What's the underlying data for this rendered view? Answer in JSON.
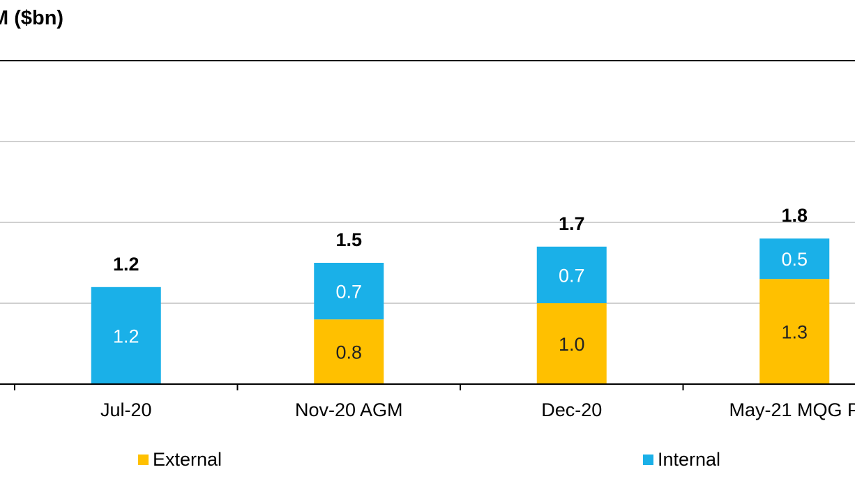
{
  "chart_data": {
    "type": "bar",
    "stacked": true,
    "title": "M ($bn)",
    "categories": [
      "Jul-20",
      "Nov-20 AGM",
      "Dec-20",
      "May-21 MQG P"
    ],
    "series": [
      {
        "name": "External",
        "values": [
          0,
          0.8,
          1.0,
          1.3
        ],
        "labels": [
          "",
          "0.8",
          "1.0",
          "1.3"
        ]
      },
      {
        "name": "Internal",
        "values": [
          1.2,
          0.7,
          0.7,
          0.5
        ],
        "labels": [
          "1.2",
          "0.7",
          "0.7",
          "0.5"
        ]
      }
    ],
    "totals": [
      1.2,
      1.5,
      1.7,
      1.8
    ],
    "total_labels": [
      "1.2",
      "1.5",
      "1.7",
      "1.8"
    ],
    "ylim": [
      0,
      4
    ],
    "grid": true,
    "legend_position": "bottom",
    "colors": {
      "External": "#FFC000",
      "Internal": "#1AB0E8"
    }
  }
}
